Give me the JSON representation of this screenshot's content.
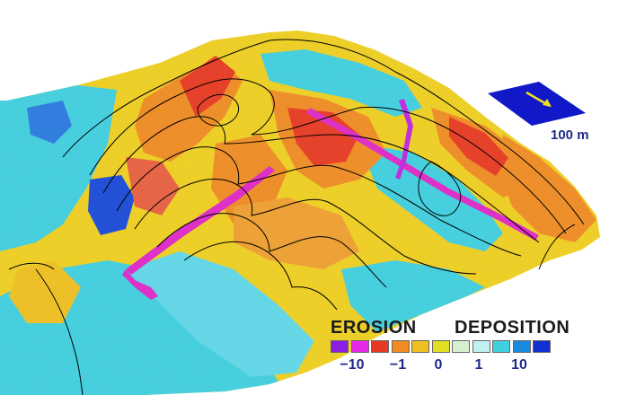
{
  "legend": {
    "erosion_label": "EROSION",
    "deposition_label": "DEPOSITION",
    "swatches": [
      "#8b1fe0",
      "#e828e8",
      "#e83a22",
      "#f08c22",
      "#f0c020",
      "#e0e020",
      "#d8f0d0",
      "#c0f0f0",
      "#40d0e0",
      "#1a8ae0",
      "#1030d0"
    ],
    "ticks": [
      "−10",
      "−1",
      "0",
      "1",
      "10"
    ]
  },
  "scale_bar": {
    "label": "100 m",
    "color": "#1018c8",
    "arrow_color": "#f0e020"
  },
  "palette": {
    "cyan": "#40d0e0",
    "blue": "#1a4ad8",
    "yellow": "#f0d020",
    "orange": "#f08c22",
    "red": "#e83a22",
    "magenta": "#e028c8",
    "contour": "#000000"
  }
}
